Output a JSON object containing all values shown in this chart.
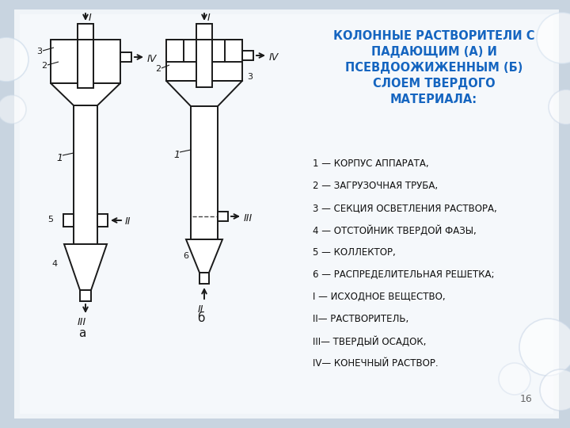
{
  "bg_color": "#c8d4e0",
  "paper_color": "#f0f4f8",
  "title_text": "КОЛОННЫЕ РАСТВОРИТЕЛИ С\nПАДАЮЩИМ (А) И\nПСЕВДООЖИЖЕННЫМ (Б)\nСЛОЕМ ТВЕРДОГО\nМАТЕРИАЛА:",
  "title_color": "#1565c0",
  "legend_items": [
    "1 — КОРПУС АППАРАТА,",
    "2 — ЗАГРУЗОЧНАЯ ТРУБА,",
    "3 — СЕКЦИЯ ОСВЕТЛЕНИЯ РАСТВОРА,",
    "4 — ОТСТОЙНИК ТВЕРДОЙ ФАЗЫ,",
    "5 — КОЛЛЕКТОР,",
    "6 — РАСПРЕДЕЛИТЕЛЬНАЯ РЕШЕТКА;",
    "I — ИСХОДНОЕ ВЕЩЕСТВО,",
    "II— РАСТВОРИТЕЛЬ,",
    "III— ТВЕРДЫЙ ОСАДОК,",
    "IV— КОНЕЧНЫЙ РАСТВОР."
  ],
  "legend_color": "#111111",
  "page_number": "16",
  "line_color": "#1a1a1a",
  "lw": 1.4
}
